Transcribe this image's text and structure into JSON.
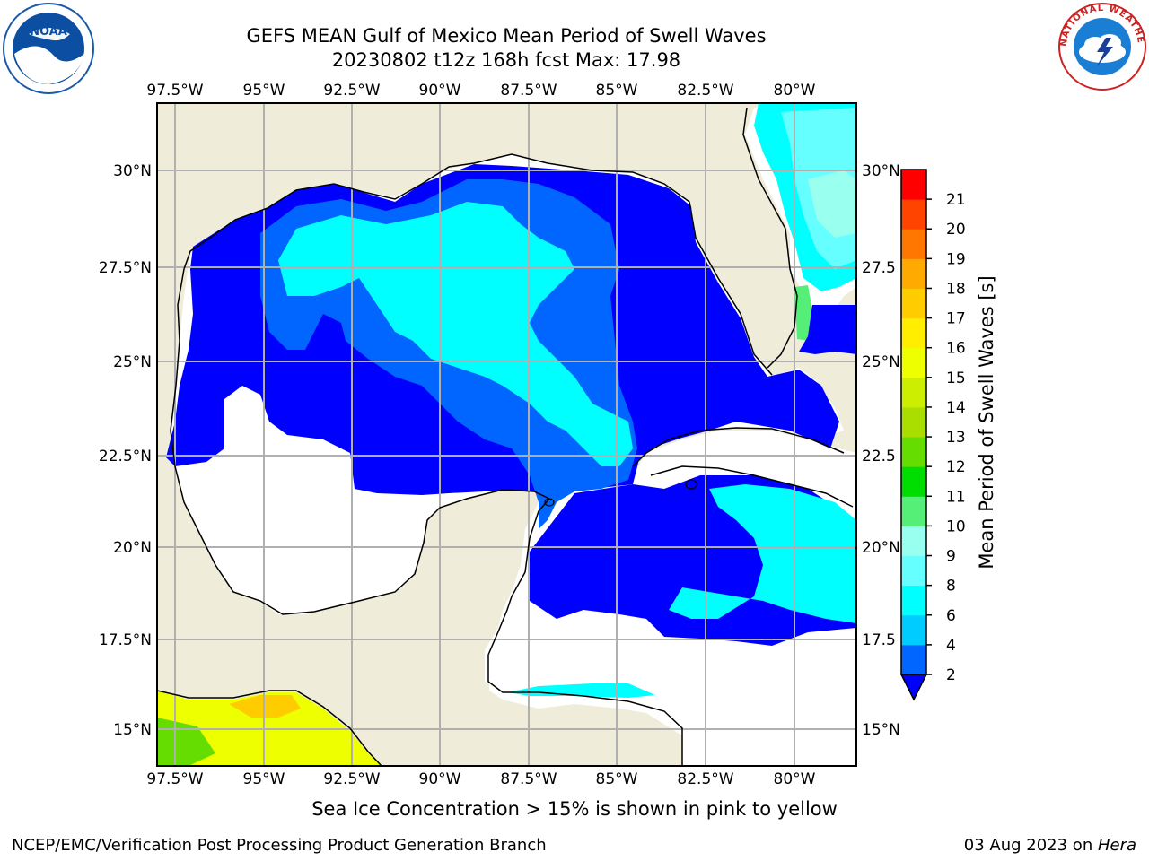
{
  "title_line1": "GEFS MEAN Gulf of Mexico Mean Period of Swell Waves",
  "title_line2": "20230802 t12z 168h fcst   Max: 17.98",
  "map": {
    "lon_labels": [
      "97.5°W",
      "95°W",
      "92.5°W",
      "90°W",
      "87.5°W",
      "85°W",
      "82.5°W",
      "80°W"
    ],
    "lat_labels_left": [
      "30°N",
      "27.5°N",
      "25°N",
      "22.5°N",
      "20°N",
      "17.5°N",
      "15°N"
    ],
    "lat_labels_right": [
      "30°N",
      "27.5",
      "25°N",
      "22.5",
      "20°N",
      "17.5",
      "15°N"
    ],
    "land_color": "#efedda",
    "ocean_nodata_color": "#ffffff"
  },
  "colorbar": {
    "label": "Mean Period of Swell Waves [s]",
    "ticks": [
      "2",
      "4",
      "6",
      "8",
      "9",
      "10",
      "11",
      "12",
      "13",
      "14",
      "15",
      "16",
      "17",
      "18",
      "19",
      "20",
      "21"
    ],
    "colors": [
      "#0066ff",
      "#00ccff",
      "#00ffff",
      "#66ffff",
      "#99ffee",
      "#55ee77",
      "#00dd00",
      "#66dd00",
      "#aadd00",
      "#ccee00",
      "#eeff00",
      "#ffee00",
      "#ffcc00",
      "#ffaa00",
      "#ff7700",
      "#ff4400",
      "#ff0000"
    ],
    "extend_color": "#0000ff"
  },
  "sea_ice_note": "Sea Ice Concentration > 15% is shown in pink to yellow",
  "footer": {
    "left": "NCEP/EMC/Verification Post Processing Product Generation Branch",
    "date": "03 Aug 2023 on ",
    "host": "Hera"
  },
  "logos": {
    "noaa": "NOAA",
    "nws_text": "NATIONAL WEATHER SERVICE"
  }
}
